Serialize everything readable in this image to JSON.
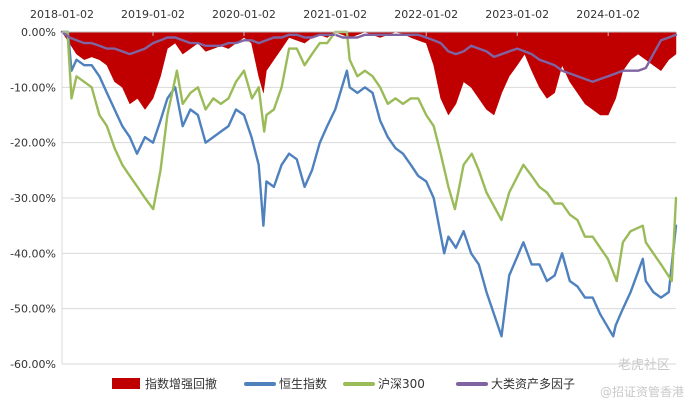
{
  "chart_data": {
    "type": "area",
    "x_ticks": [
      "2018-01-02",
      "2019-01-02",
      "2020-01-02",
      "2021-01-02",
      "2022-01-02",
      "2023-01-02",
      "2024-01-02"
    ],
    "y_ticks": [
      "0.00%",
      "-10.00%",
      "-20.00%",
      "-30.00%",
      "-40.00%",
      "-50.00%",
      "-60.00%"
    ],
    "ylim": [
      -0.6,
      0.0
    ],
    "xlim": [
      "2018-01-02",
      "2024-09-30"
    ],
    "grid": true,
    "legend_position": "bottom",
    "series": [
      {
        "name": "指数增强回撤",
        "render": "area",
        "color": "#C00000",
        "x": [
          "2018-01-02",
          "2018-02-01",
          "2018-03-01",
          "2018-04-01",
          "2018-05-01",
          "2018-06-01",
          "2018-07-01",
          "2018-08-01",
          "2018-09-01",
          "2018-10-01",
          "2018-11-01",
          "2018-12-01",
          "2019-01-02",
          "2019-02-01",
          "2019-03-01",
          "2019-04-01",
          "2019-05-01",
          "2019-06-01",
          "2019-07-01",
          "2019-08-01",
          "2019-09-01",
          "2019-10-01",
          "2019-11-01",
          "2019-12-01",
          "2020-01-02",
          "2020-02-01",
          "2020-03-01",
          "2020-03-20",
          "2020-04-01",
          "2020-05-01",
          "2020-06-01",
          "2020-07-01",
          "2020-08-01",
          "2020-09-01",
          "2020-10-01",
          "2020-11-01",
          "2020-12-01",
          "2021-01-02",
          "2021-02-01",
          "2021-03-01",
          "2021-04-01",
          "2021-05-01",
          "2021-06-01",
          "2021-07-01",
          "2021-08-01",
          "2021-09-01",
          "2021-10-01",
          "2021-11-01",
          "2021-12-01",
          "2022-01-02",
          "2022-02-01",
          "2022-03-01",
          "2022-04-01",
          "2022-05-01",
          "2022-06-01",
          "2022-07-01",
          "2022-08-01",
          "2022-09-01",
          "2022-10-01",
          "2022-11-01",
          "2022-12-01",
          "2023-01-02",
          "2023-02-01",
          "2023-03-01",
          "2023-04-01",
          "2023-05-01",
          "2023-06-01",
          "2023-07-01",
          "2023-08-01",
          "2023-09-01",
          "2023-10-01",
          "2023-11-01",
          "2023-12-01",
          "2024-01-02",
          "2024-02-01",
          "2024-03-01",
          "2024-04-01",
          "2024-05-01",
          "2024-06-01",
          "2024-07-01",
          "2024-08-01",
          "2024-09-01",
          "2024-09-30"
        ],
        "values": [
          0.0,
          -0.02,
          -0.04,
          -0.05,
          -0.045,
          -0.05,
          -0.06,
          -0.09,
          -0.1,
          -0.13,
          -0.12,
          -0.14,
          -0.12,
          -0.08,
          -0.03,
          -0.02,
          -0.04,
          -0.03,
          -0.02,
          -0.035,
          -0.03,
          -0.025,
          -0.03,
          -0.02,
          -0.01,
          -0.02,
          -0.08,
          -0.11,
          -0.07,
          -0.05,
          -0.03,
          -0.01,
          -0.015,
          -0.02,
          -0.01,
          -0.005,
          -0.01,
          0.0,
          -0.005,
          -0.01,
          -0.005,
          0.0,
          -0.005,
          -0.01,
          -0.005,
          0.0,
          -0.003,
          -0.01,
          -0.015,
          -0.02,
          -0.06,
          -0.12,
          -0.15,
          -0.13,
          -0.09,
          -0.1,
          -0.12,
          -0.14,
          -0.15,
          -0.11,
          -0.08,
          -0.06,
          -0.04,
          -0.07,
          -0.1,
          -0.12,
          -0.11,
          -0.06,
          -0.09,
          -0.11,
          -0.13,
          -0.14,
          -0.15,
          -0.15,
          -0.12,
          -0.07,
          -0.05,
          -0.04,
          -0.05,
          -0.06,
          -0.07,
          -0.05,
          -0.04
        ]
      },
      {
        "name": "恒生指数",
        "render": "line",
        "color": "#4E81BD",
        "x": [
          "2018-01-02",
          "2018-01-26",
          "2018-02-09",
          "2018-03-01",
          "2018-04-01",
          "2018-05-01",
          "2018-06-01",
          "2018-07-01",
          "2018-08-01",
          "2018-09-01",
          "2018-10-01",
          "2018-10-30",
          "2018-12-01",
          "2019-01-02",
          "2019-02-01",
          "2019-03-01",
          "2019-04-01",
          "2019-05-01",
          "2019-06-01",
          "2019-07-01",
          "2019-08-01",
          "2019-09-01",
          "2019-10-01",
          "2019-11-01",
          "2019-12-01",
          "2020-01-02",
          "2020-02-01",
          "2020-03-01",
          "2020-03-20",
          "2020-04-01",
          "2020-05-01",
          "2020-06-01",
          "2020-07-01",
          "2020-08-01",
          "2020-09-01",
          "2020-10-01",
          "2020-11-01",
          "2020-12-01",
          "2021-01-02",
          "2021-02-18",
          "2021-03-01",
          "2021-04-01",
          "2021-05-01",
          "2021-06-01",
          "2021-07-01",
          "2021-08-01",
          "2021-09-01",
          "2021-10-01",
          "2021-11-01",
          "2021-12-01",
          "2022-01-02",
          "2022-02-01",
          "2022-03-15",
          "2022-04-01",
          "2022-05-01",
          "2022-06-01",
          "2022-07-01",
          "2022-08-01",
          "2022-09-01",
          "2022-10-31",
          "2022-12-01",
          "2023-01-27",
          "2023-03-01",
          "2023-04-01",
          "2023-05-01",
          "2023-06-01",
          "2023-07-01",
          "2023-08-01",
          "2023-09-01",
          "2023-10-01",
          "2023-11-01",
          "2023-12-01",
          "2024-01-22",
          "2024-02-01",
          "2024-03-01",
          "2024-04-01",
          "2024-05-20",
          "2024-06-01",
          "2024-07-01",
          "2024-08-01",
          "2024-09-01",
          "2024-09-30"
        ],
        "values": [
          0.0,
          0.0,
          -0.07,
          -0.05,
          -0.06,
          -0.06,
          -0.08,
          -0.11,
          -0.14,
          -0.17,
          -0.19,
          -0.22,
          -0.19,
          -0.2,
          -0.16,
          -0.12,
          -0.1,
          -0.17,
          -0.14,
          -0.15,
          -0.2,
          -0.19,
          -0.18,
          -0.17,
          -0.14,
          -0.15,
          -0.19,
          -0.24,
          -0.35,
          -0.27,
          -0.28,
          -0.24,
          -0.22,
          -0.23,
          -0.28,
          -0.25,
          -0.2,
          -0.17,
          -0.14,
          -0.07,
          -0.1,
          -0.11,
          -0.1,
          -0.11,
          -0.16,
          -0.19,
          -0.21,
          -0.22,
          -0.24,
          -0.26,
          -0.27,
          -0.3,
          -0.4,
          -0.37,
          -0.39,
          -0.36,
          -0.4,
          -0.42,
          -0.47,
          -0.55,
          -0.44,
          -0.38,
          -0.42,
          -0.42,
          -0.45,
          -0.44,
          -0.4,
          -0.45,
          -0.46,
          -0.48,
          -0.48,
          -0.51,
          -0.55,
          -0.53,
          -0.5,
          -0.47,
          -0.41,
          -0.45,
          -0.47,
          -0.48,
          -0.47,
          -0.35
        ]
      },
      {
        "name": "沪深300",
        "render": "line",
        "color": "#9BBB59",
        "x": [
          "2018-01-02",
          "2018-01-24",
          "2018-02-09",
          "2018-03-01",
          "2018-04-01",
          "2018-05-01",
          "2018-06-01",
          "2018-07-01",
          "2018-08-01",
          "2018-09-01",
          "2018-10-01",
          "2018-11-01",
          "2018-12-01",
          "2019-01-03",
          "2019-02-01",
          "2019-03-01",
          "2019-04-08",
          "2019-05-01",
          "2019-06-01",
          "2019-07-01",
          "2019-08-01",
          "2019-09-01",
          "2019-10-01",
          "2019-11-01",
          "2019-12-01",
          "2020-01-02",
          "2020-02-03",
          "2020-03-01",
          "2020-03-23",
          "2020-04-01",
          "2020-05-01",
          "2020-06-01",
          "2020-07-01",
          "2020-08-01",
          "2020-09-01",
          "2020-10-01",
          "2020-11-01",
          "2020-12-01",
          "2021-01-02",
          "2021-02-18",
          "2021-03-01",
          "2021-04-01",
          "2021-05-01",
          "2021-06-01",
          "2021-07-01",
          "2021-08-01",
          "2021-09-01",
          "2021-10-01",
          "2021-11-01",
          "2021-12-01",
          "2022-01-02",
          "2022-02-01",
          "2022-03-01",
          "2022-04-01",
          "2022-04-27",
          "2022-06-01",
          "2022-07-04",
          "2022-08-01",
          "2022-09-01",
          "2022-10-31",
          "2022-12-01",
          "2023-01-27",
          "2023-03-01",
          "2023-04-01",
          "2023-05-01",
          "2023-06-01",
          "2023-07-01",
          "2023-08-01",
          "2023-09-01",
          "2023-10-01",
          "2023-11-01",
          "2023-12-01",
          "2024-01-01",
          "2024-02-05",
          "2024-03-01",
          "2024-04-01",
          "2024-05-20",
          "2024-06-01",
          "2024-07-01",
          "2024-08-01",
          "2024-09-13",
          "2024-09-30"
        ],
        "values": [
          0.0,
          0.0,
          -0.12,
          -0.08,
          -0.09,
          -0.1,
          -0.15,
          -0.17,
          -0.21,
          -0.24,
          -0.26,
          -0.28,
          -0.3,
          -0.32,
          -0.25,
          -0.15,
          -0.07,
          -0.13,
          -0.11,
          -0.1,
          -0.14,
          -0.12,
          -0.13,
          -0.12,
          -0.09,
          -0.07,
          -0.12,
          -0.1,
          -0.18,
          -0.15,
          -0.14,
          -0.1,
          -0.03,
          -0.03,
          -0.06,
          -0.04,
          -0.02,
          -0.02,
          0.0,
          0.0,
          -0.05,
          -0.08,
          -0.07,
          -0.08,
          -0.1,
          -0.13,
          -0.12,
          -0.13,
          -0.12,
          -0.12,
          -0.15,
          -0.17,
          -0.22,
          -0.28,
          -0.32,
          -0.24,
          -0.22,
          -0.25,
          -0.29,
          -0.34,
          -0.29,
          -0.24,
          -0.26,
          -0.28,
          -0.29,
          -0.31,
          -0.31,
          -0.33,
          -0.34,
          -0.37,
          -0.37,
          -0.39,
          -0.41,
          -0.45,
          -0.38,
          -0.36,
          -0.35,
          -0.38,
          -0.4,
          -0.42,
          -0.45,
          -0.3
        ]
      },
      {
        "name": "大类资产多因子",
        "render": "line",
        "color": "#8064A2",
        "x": [
          "2018-01-02",
          "2018-02-01",
          "2018-03-01",
          "2018-04-01",
          "2018-05-01",
          "2018-06-01",
          "2018-07-01",
          "2018-08-01",
          "2018-09-01",
          "2018-10-01",
          "2018-11-01",
          "2018-12-01",
          "2019-01-02",
          "2019-02-01",
          "2019-03-01",
          "2019-04-01",
          "2019-05-01",
          "2019-06-01",
          "2019-07-01",
          "2019-08-01",
          "2019-09-01",
          "2019-10-01",
          "2019-11-01",
          "2019-12-01",
          "2020-01-02",
          "2020-02-01",
          "2020-03-01",
          "2020-04-01",
          "2020-05-01",
          "2020-06-01",
          "2020-07-01",
          "2020-08-01",
          "2020-09-01",
          "2020-10-01",
          "2020-11-01",
          "2020-12-01",
          "2021-01-02",
          "2021-02-01",
          "2021-03-01",
          "2021-04-01",
          "2021-05-01",
          "2021-06-01",
          "2021-07-01",
          "2021-08-01",
          "2021-09-01",
          "2021-10-01",
          "2021-11-01",
          "2021-12-01",
          "2022-01-02",
          "2022-02-01",
          "2022-03-01",
          "2022-04-01",
          "2022-05-01",
          "2022-06-01",
          "2022-07-01",
          "2022-08-01",
          "2022-09-01",
          "2022-10-01",
          "2022-11-01",
          "2022-12-01",
          "2023-01-02",
          "2023-02-01",
          "2023-03-01",
          "2023-04-01",
          "2023-05-01",
          "2023-06-01",
          "2023-07-01",
          "2023-08-01",
          "2023-09-01",
          "2023-10-01",
          "2023-11-01",
          "2023-12-01",
          "2024-01-02",
          "2024-02-01",
          "2024-03-01",
          "2024-04-01",
          "2024-05-01",
          "2024-06-01",
          "2024-07-01",
          "2024-08-01",
          "2024-09-01",
          "2024-09-30"
        ],
        "values": [
          0.0,
          -0.01,
          -0.015,
          -0.02,
          -0.02,
          -0.025,
          -0.03,
          -0.03,
          -0.035,
          -0.04,
          -0.035,
          -0.03,
          -0.02,
          -0.015,
          -0.01,
          -0.01,
          -0.015,
          -0.02,
          -0.02,
          -0.025,
          -0.025,
          -0.025,
          -0.02,
          -0.02,
          -0.015,
          -0.015,
          -0.02,
          -0.015,
          -0.01,
          -0.01,
          -0.005,
          -0.005,
          -0.01,
          -0.01,
          -0.005,
          -0.005,
          -0.005,
          -0.01,
          -0.01,
          -0.01,
          -0.005,
          -0.005,
          -0.005,
          -0.005,
          -0.005,
          -0.005,
          -0.005,
          -0.005,
          -0.01,
          -0.015,
          -0.02,
          -0.035,
          -0.04,
          -0.035,
          -0.025,
          -0.03,
          -0.035,
          -0.045,
          -0.04,
          -0.035,
          -0.03,
          -0.035,
          -0.04,
          -0.05,
          -0.055,
          -0.06,
          -0.07,
          -0.075,
          -0.08,
          -0.085,
          -0.09,
          -0.085,
          -0.08,
          -0.075,
          -0.07,
          -0.07,
          -0.07,
          -0.065,
          -0.04,
          -0.015,
          -0.01,
          -0.005
        ]
      }
    ]
  },
  "watermark": {
    "line1": "老虎社区",
    "line2": "@招证资管香港"
  }
}
